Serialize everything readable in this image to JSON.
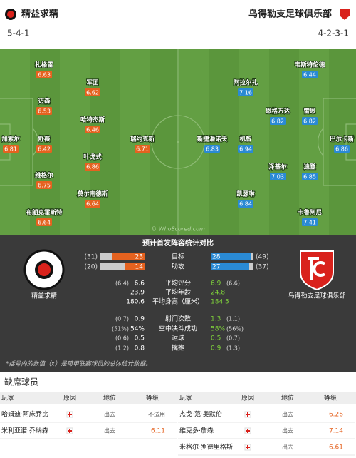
{
  "header": {
    "home": {
      "name": "精益求精",
      "formation": "5-4-1"
    },
    "away": {
      "name": "乌得勒支足球俱乐部",
      "formation": "4-2-3-1"
    }
  },
  "pitch": {
    "home": [
      {
        "name": "扎格雷",
        "rating": 6.63
      },
      {
        "name": "迈森",
        "rating": 6.53
      },
      {
        "name": "舒薇",
        "rating": 6.42
      },
      {
        "name": "维格尔",
        "rating": 6.75
      },
      {
        "name": "布朗克霍斯特",
        "rating": 6.64
      },
      {
        "name": "加索尔",
        "rating": 6.81
      },
      {
        "name": "军团",
        "rating": 6.62
      },
      {
        "name": "哈特杰斯",
        "rating": 6.46
      },
      {
        "name": "叶戈式",
        "rating": 6.86
      },
      {
        "name": "莫尔南德斯",
        "rating": 6.64
      },
      {
        "name": "瑞约克斯",
        "rating": 6.71
      }
    ],
    "away": [
      {
        "name": "韦斯特伦德",
        "rating": 6.44
      },
      {
        "name": "阿拉尔扎",
        "rating": 7.16
      },
      {
        "name": "恩格万达",
        "rating": 6.82
      },
      {
        "name": "雷恩",
        "rating": 6.82
      },
      {
        "name": "巴尔卡斯",
        "rating": 6.86
      },
      {
        "name": "斯捷潘诺夫",
        "rating": 6.83
      },
      {
        "name": "机智",
        "rating": 6.94
      },
      {
        "name": "泽基尔",
        "rating": 7.03
      },
      {
        "name": "迪登",
        "rating": 6.85
      },
      {
        "name": "凯瑟琳",
        "rating": 6.84
      },
      {
        "name": "卡鲁阿尼",
        "rating": 7.41
      }
    ],
    "watermark": "© WhoScored.com"
  },
  "stats": {
    "title": "预计首发阵容统计对比",
    "home_team": "精益求精",
    "away_team": "乌得勒支足球俱乐部",
    "rows": [
      {
        "label": "目标",
        "home": 23,
        "away": 28,
        "home_league": "(31)",
        "away_league": "(49)"
      },
      {
        "label": "助攻",
        "home": 14,
        "away": 27,
        "home_league": "(20)",
        "away_league": "(37)"
      },
      {
        "label": "平均评分",
        "home": 6.6,
        "away": 6.9,
        "home_league": "(6.4)",
        "away_league": "(6.6)"
      },
      {
        "label": "平均年龄",
        "home": 23.9,
        "away": 24.8
      },
      {
        "label": "平均身高（厘米）",
        "home": 180.6,
        "away": 184.5
      },
      {
        "label": "射门次数",
        "home": 0.9,
        "away": 1.3,
        "home_league": "(0.7)",
        "away_league": "(1.1)"
      },
      {
        "label": "空中决斗成功",
        "home": "54%",
        "away": "58%",
        "home_league": "(51%)",
        "away_league": "(56%)"
      },
      {
        "label": "运球",
        "home": 0.5,
        "away": 0.5,
        "home_league": "(0.6)",
        "away_league": "(0.7)"
      },
      {
        "label": "擒抱",
        "home": 0.8,
        "away": 0.9,
        "home_league": "(1.2)",
        "away_league": "(1.3)"
      }
    ],
    "footnote": "*括号内的数值（x）是荷甲联赛球员的总体统计数据。"
  },
  "absent": {
    "title": "缺席球员",
    "headers": [
      "玩家",
      "原因",
      "地位",
      "等级"
    ],
    "home": [
      {
        "player": "哈姆迪·阿床乔比",
        "status": "出去",
        "rating": "不适用"
      },
      {
        "player": "米利亚诺·乔纳森",
        "status": "出去",
        "rating": 6.11
      }
    ],
    "away": [
      {
        "player": "杰戈·范·奥默伦",
        "status": "出去",
        "rating": 6.26
      },
      {
        "player": "维克多·詹森",
        "status": "出去",
        "rating": 7.14
      },
      {
        "player": "米格尔·罗德里格斯",
        "status": "出去",
        "rating": 6.61
      }
    ]
  }
}
